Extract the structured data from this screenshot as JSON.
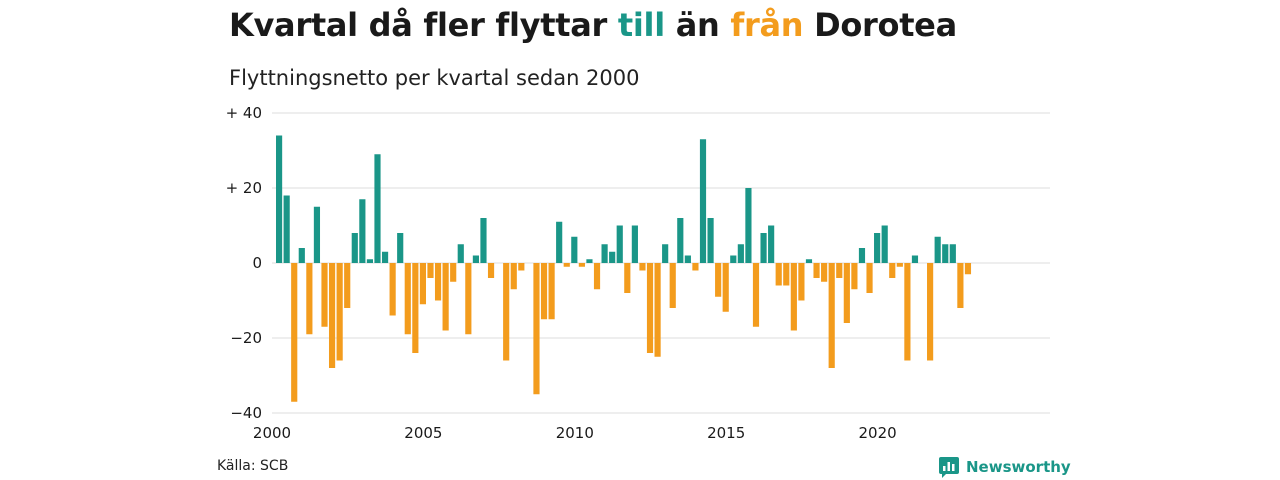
{
  "header": {
    "title_part1": "Kvartal då fler flyttar ",
    "title_in": "till",
    "title_part2": " än ",
    "title_out": "från",
    "title_part3": " Dorotea",
    "subtitle": "Flyttningsnetto per kvartal sedan 2000"
  },
  "footer": {
    "source": "Källa: SCB",
    "brand": "Newsworthy"
  },
  "colors": {
    "positive": "#1a9688",
    "negative": "#f39c1d",
    "grid": "#dddddd"
  },
  "chart_data": {
    "type": "bar",
    "title": "Kvartal då fler flyttar till än från Dorotea",
    "subtitle": "Flyttningsnetto per kvartal sedan 2000",
    "xlabel": "",
    "ylabel": "",
    "ylim": [
      -40,
      40
    ],
    "y_ticks": [
      40,
      20,
      0,
      -20,
      -40
    ],
    "y_tick_labels": [
      "+ 40",
      "+ 20",
      "0",
      "−20",
      "−40"
    ],
    "x_ticks": [
      2000,
      2005,
      2010,
      2015,
      2020
    ],
    "x_tick_labels": [
      "2000",
      "2005",
      "2010",
      "2015",
      "2020"
    ],
    "x_start": 2000,
    "quarters_per_year": 4,
    "grid": true,
    "values": [
      34,
      18,
      -37,
      4,
      -19,
      15,
      -17,
      -28,
      -26,
      -12,
      8,
      17,
      1,
      29,
      3,
      -14,
      8,
      -19,
      -24,
      -11,
      -4,
      -10,
      -18,
      -5,
      5,
      -19,
      2,
      12,
      -4,
      0,
      -26,
      -7,
      -2,
      0,
      -35,
      -15,
      -15,
      11,
      -1,
      7,
      -1,
      1,
      -7,
      5,
      3,
      10,
      -8,
      10,
      -2,
      -24,
      -25,
      5,
      -12,
      12,
      2,
      -2,
      33,
      12,
      -9,
      -13,
      2,
      5,
      20,
      -17,
      8,
      10,
      -6,
      -6,
      -18,
      -10,
      1,
      -4,
      -5,
      -28,
      -4,
      -16,
      -7,
      4,
      -8,
      8,
      10,
      -4,
      -1,
      -26,
      2,
      0,
      -26,
      7,
      5,
      5,
      -12,
      -3
    ]
  }
}
